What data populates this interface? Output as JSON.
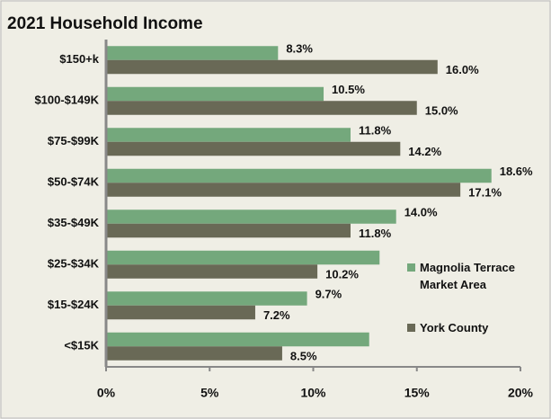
{
  "chart_data": {
    "type": "bar",
    "orientation": "horizontal",
    "title": "2021 Household Income",
    "categories": [
      "$150+k",
      "$100-$149K",
      "$75-$99K",
      "$50-$74K",
      "$35-$49K",
      "$25-$34K",
      "$15-$24K",
      "<$15K"
    ],
    "series": [
      {
        "name": "Magnolia Terrace Market Area",
        "color": "#74a87c",
        "values": [
          8.3,
          10.5,
          11.8,
          18.6,
          14.0,
          13.2,
          9.7,
          12.7
        ],
        "value_labels": [
          "8.3%",
          "10.5%",
          "11.8%",
          "18.6%",
          "14.0%",
          null,
          "9.7%",
          null
        ]
      },
      {
        "name": "York County",
        "color": "#696956",
        "values": [
          16.0,
          15.0,
          14.2,
          17.1,
          11.8,
          10.2,
          7.2,
          8.5
        ],
        "value_labels": [
          "16.0%",
          "15.0%",
          "14.2%",
          "17.1%",
          "11.8%",
          "10.2%",
          "7.2%",
          "8.5%"
        ]
      }
    ],
    "xlim": [
      0,
      20
    ],
    "xticks": [
      {
        "value": 0,
        "label": "0%"
      },
      {
        "value": 5,
        "label": "5%"
      },
      {
        "value": 10,
        "label": "10%"
      },
      {
        "value": 15,
        "label": "15%"
      },
      {
        "value": 20,
        "label": "20%"
      }
    ],
    "grid": false,
    "legend": "right"
  }
}
